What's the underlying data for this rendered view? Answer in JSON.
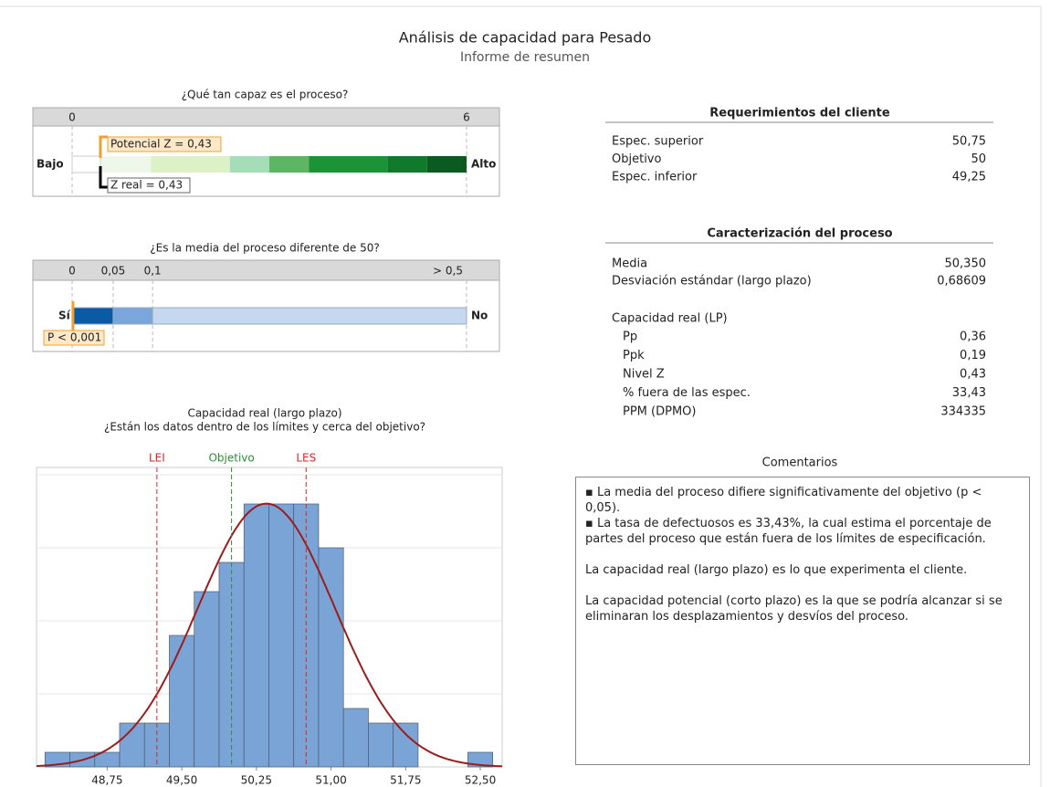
{
  "header": {
    "title": "Análisis de capacidad para Pesado",
    "subtitle": "Informe de resumen"
  },
  "capability_gauge": {
    "title": "¿Qué tan capaz es el proceso?",
    "ticks": [
      0,
      6
    ],
    "low_label": "Bajo",
    "high_label": "Alto",
    "bands": [
      {
        "from": 0,
        "to": 1.2,
        "color": "#eef7ea"
      },
      {
        "from": 1.2,
        "to": 2.4,
        "color": "#dcf1c6"
      },
      {
        "from": 2.4,
        "to": 3,
        "color": "#a6dcb8"
      },
      {
        "from": 3,
        "to": 3.6,
        "color": "#5db565"
      },
      {
        "from": 3.6,
        "to": 4.8,
        "color": "#1b9338"
      },
      {
        "from": 4.8,
        "to": 5.4,
        "color": "#107a2c"
      },
      {
        "from": 5.4,
        "to": 6,
        "color": "#0b5a20"
      }
    ],
    "potential": {
      "value": 0.43,
      "label": "Potencial Z = 0,43",
      "color": "#f0a030"
    },
    "actual": {
      "value": 0.43,
      "label": "Z real = 0,43",
      "color": "#000000"
    }
  },
  "mean_gauge": {
    "title": "¿Es la media del proceso diferente de 50?",
    "ticks": [
      0,
      {
        "value": 0.05,
        "label": "0,05"
      },
      {
        "value": 0.1,
        "label": "0,1"
      },
      {
        "value": 0.5,
        "label": "> 0,5"
      }
    ],
    "yes_label": "Sí",
    "no_label": "No",
    "bands": [
      {
        "from": 0,
        "to": 0.05,
        "color": "#0b5aa6"
      },
      {
        "from": 0.05,
        "to": 0.1,
        "color": "#7aa6dc"
      },
      {
        "from": 0.1,
        "to": 0.5,
        "color": "#c5d8f0"
      }
    ],
    "p": {
      "value": 0.001,
      "label": "P < 0,001",
      "color": "#f0a030"
    }
  },
  "chart_data": {
    "type": "histogram",
    "title": "Capacidad real (largo plazo)",
    "subtitle": "¿Están los datos dentro de los límites y cerca del objetivo?",
    "bins": [
      48.125,
      48.375,
      48.625,
      48.875,
      49.125,
      49.375,
      49.625,
      49.875,
      50.125,
      50.375,
      50.625,
      50.875,
      51.125,
      51.375,
      51.625,
      51.875,
      52.125,
      52.375,
      52.625
    ],
    "counts": [
      1,
      1,
      1,
      3,
      3,
      9,
      12,
      14,
      18,
      18,
      18,
      15,
      4,
      3,
      3,
      0,
      0,
      1
    ],
    "color": "#7ba4d6",
    "xlim": [
      48.04,
      52.72
    ],
    "xticks": [
      {
        "value": 48.75,
        "label": "48,75"
      },
      {
        "value": 49.5,
        "label": "49,50"
      },
      {
        "value": 50.25,
        "label": "50,25"
      },
      {
        "value": 51,
        "label": "51,00"
      },
      {
        "value": 51.75,
        "label": "51,75"
      },
      {
        "value": 52.5,
        "label": "52,50"
      }
    ],
    "ylim": [
      0,
      20.5
    ],
    "yticks": [
      5,
      10,
      15,
      20
    ],
    "grid": true,
    "fit": {
      "mean": 50.35,
      "sd": 0.68609,
      "color": "#9b1c1c"
    },
    "reference_lines": [
      {
        "label": "LEI",
        "value": 49.25,
        "color": "#d62728"
      },
      {
        "label": "Objetivo",
        "value": 50,
        "color": "#2e8b3a"
      },
      {
        "label": "LES",
        "value": 50.75,
        "color": "#d62728"
      }
    ]
  },
  "customer_requirements": {
    "title": "Requerimientos del cliente",
    "rows": [
      [
        "Espec. superior",
        "50,75"
      ],
      [
        "Objetivo",
        "50"
      ],
      [
        "Espec. inferior",
        "49,25"
      ]
    ]
  },
  "process": {
    "title": "Caracterización del proceso",
    "rows": [
      [
        "Media",
        "50,350"
      ],
      [
        "Desviación estándar (largo plazo)",
        "0,68609"
      ]
    ],
    "capability_title": "Capacidad real (LP)",
    "capability_rows": [
      [
        "Pp",
        "0,36"
      ],
      [
        "Ppk",
        "0,19"
      ],
      [
        "Nivel Z",
        "0,43"
      ],
      [
        "% fuera de las espec.",
        "33,43"
      ],
      [
        "PPM (DPMO)",
        "334335"
      ]
    ]
  },
  "comments": {
    "title": "Comentarios",
    "bullets": [
      "La media del proceso difiere significativamente del objetivo (p < 0,05).",
      "La tasa de defectuosos es 33,43%, la cual estima el porcentaje de partes del proceso que están fuera de los límites de especificación."
    ],
    "paragraphs": [
      "La capacidad real (largo plazo) es lo que experimenta el cliente.",
      "La capacidad potencial (corto plazo) es la que se podría alcanzar si se eliminaran los desplazamientos y desvíos del proceso."
    ]
  }
}
